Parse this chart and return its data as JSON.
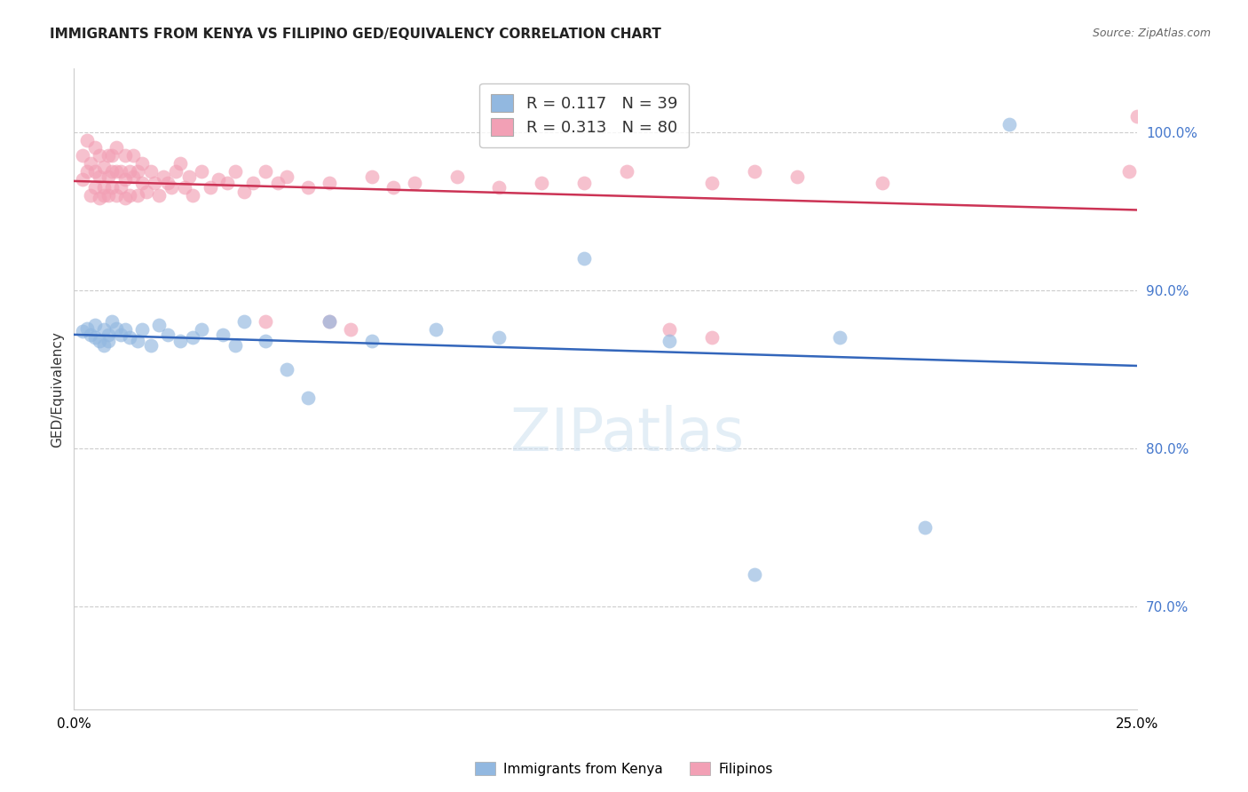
{
  "title": "IMMIGRANTS FROM KENYA VS FILIPINO GED/EQUIVALENCY CORRELATION CHART",
  "source": "Source: ZipAtlas.com",
  "ylabel": "GED/Equivalency",
  "ytick_values": [
    0.7,
    0.8,
    0.9,
    1.0
  ],
  "xlim": [
    0.0,
    0.25
  ],
  "ylim": [
    0.635,
    1.04
  ],
  "legend_kenya_r": "0.117",
  "legend_kenya_n": "39",
  "legend_filipino_r": "0.313",
  "legend_filipino_n": "80",
  "kenya_color": "#92b8e0",
  "filipino_color": "#f2a0b5",
  "kenya_line_color": "#3366bb",
  "filipino_line_color": "#cc3355",
  "kenya_x": [
    0.002,
    0.003,
    0.004,
    0.005,
    0.005,
    0.006,
    0.007,
    0.007,
    0.008,
    0.008,
    0.009,
    0.01,
    0.011,
    0.012,
    0.013,
    0.015,
    0.016,
    0.018,
    0.02,
    0.022,
    0.025,
    0.028,
    0.03,
    0.035,
    0.038,
    0.04,
    0.045,
    0.05,
    0.055,
    0.06,
    0.07,
    0.085,
    0.1,
    0.12,
    0.14,
    0.16,
    0.18,
    0.2,
    0.22
  ],
  "kenya_y": [
    0.874,
    0.876,
    0.872,
    0.87,
    0.878,
    0.868,
    0.875,
    0.865,
    0.872,
    0.868,
    0.88,
    0.876,
    0.872,
    0.875,
    0.87,
    0.868,
    0.875,
    0.865,
    0.878,
    0.872,
    0.868,
    0.87,
    0.875,
    0.872,
    0.865,
    0.88,
    0.868,
    0.85,
    0.832,
    0.88,
    0.868,
    0.875,
    0.87,
    0.92,
    0.868,
    0.72,
    0.87,
    0.75,
    1.005
  ],
  "filipino_x": [
    0.002,
    0.002,
    0.003,
    0.003,
    0.004,
    0.004,
    0.005,
    0.005,
    0.005,
    0.006,
    0.006,
    0.006,
    0.007,
    0.007,
    0.007,
    0.008,
    0.008,
    0.008,
    0.009,
    0.009,
    0.009,
    0.01,
    0.01,
    0.01,
    0.011,
    0.011,
    0.012,
    0.012,
    0.012,
    0.013,
    0.013,
    0.014,
    0.014,
    0.015,
    0.015,
    0.016,
    0.016,
    0.017,
    0.018,
    0.019,
    0.02,
    0.021,
    0.022,
    0.023,
    0.024,
    0.025,
    0.026,
    0.027,
    0.028,
    0.03,
    0.032,
    0.034,
    0.036,
    0.038,
    0.04,
    0.042,
    0.045,
    0.048,
    0.05,
    0.055,
    0.06,
    0.065,
    0.07,
    0.075,
    0.08,
    0.09,
    0.1,
    0.11,
    0.13,
    0.15,
    0.16,
    0.17,
    0.19,
    0.15,
    0.14,
    0.12,
    0.06,
    0.045,
    0.25,
    0.248
  ],
  "filipino_y": [
    0.97,
    0.985,
    0.975,
    0.995,
    0.96,
    0.98,
    0.975,
    0.965,
    0.99,
    0.958,
    0.972,
    0.985,
    0.965,
    0.978,
    0.96,
    0.972,
    0.985,
    0.96,
    0.975,
    0.965,
    0.985,
    0.96,
    0.975,
    0.99,
    0.965,
    0.975,
    0.985,
    0.97,
    0.958,
    0.975,
    0.96,
    0.972,
    0.985,
    0.96,
    0.975,
    0.968,
    0.98,
    0.962,
    0.975,
    0.968,
    0.96,
    0.972,
    0.968,
    0.965,
    0.975,
    0.98,
    0.965,
    0.972,
    0.96,
    0.975,
    0.965,
    0.97,
    0.968,
    0.975,
    0.962,
    0.968,
    0.975,
    0.968,
    0.972,
    0.965,
    0.968,
    0.875,
    0.972,
    0.965,
    0.968,
    0.972,
    0.965,
    0.968,
    0.975,
    0.968,
    0.975,
    0.972,
    0.968,
    0.87,
    0.875,
    0.968,
    0.88,
    0.88,
    1.01,
    0.975
  ]
}
